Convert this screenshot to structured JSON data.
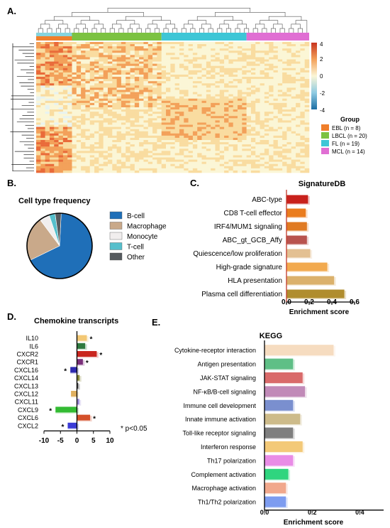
{
  "panels": {
    "a": "A.",
    "b": "B.",
    "c": "C.",
    "d": "D.",
    "e": "E."
  },
  "colors": {
    "ebl": "#f07f2b",
    "lbcl": "#7cc242",
    "fl": "#3ec6d6",
    "mcl": "#e06fd3"
  },
  "chart_data": [
    {
      "type": "heatmap",
      "panel": "A.",
      "colorbar_ticks": [
        "4",
        "2",
        "0",
        "-2",
        "-4"
      ],
      "clim": [
        -4,
        4
      ],
      "legend_title": "Group",
      "groups": [
        {
          "label": "EBL (n = 8)",
          "n": 8,
          "color": "#f07f2b"
        },
        {
          "label": "LBCL (n = 20)",
          "n": 20,
          "color": "#7cc242"
        },
        {
          "label": "FL (n = 19)",
          "n": 19,
          "color": "#3ec6d6"
        },
        {
          "label": "MCL (n = 14)",
          "n": 14,
          "color": "#e06fd3"
        }
      ]
    },
    {
      "type": "pie",
      "panel": "B.",
      "title": "Cell type frequency",
      "slices": [
        {
          "label": "B-cell",
          "value": 67,
          "color": "#1f6fb8"
        },
        {
          "label": "Macrophage",
          "value": 22,
          "color": "#c9a98a"
        },
        {
          "label": "Monocyte",
          "value": 5,
          "color": "#f1eeee"
        },
        {
          "label": "T-cell",
          "value": 3,
          "color": "#55bfcc"
        },
        {
          "label": "Other",
          "value": 3,
          "color": "#555a5e"
        }
      ]
    },
    {
      "type": "bar",
      "panel": "C.",
      "title": "SignatureDB",
      "xlabel": "Enrichment score",
      "xlim": [
        0,
        0.6
      ],
      "xticks": [
        "0.0",
        "0.2",
        "0.4",
        "0.6"
      ],
      "bars": [
        {
          "label": "ABC-type",
          "value": 0.19,
          "color": "#c8211c"
        },
        {
          "label": "CD8 T-cell effector",
          "value": 0.17,
          "color": "#ea7c1e"
        },
        {
          "label": "IRF4/MUM1 signaling",
          "value": 0.18,
          "color": "#e07a22"
        },
        {
          "label": "ABC_gt_GCB_Affy",
          "value": 0.18,
          "color": "#b8534e"
        },
        {
          "label": "Quiescence/low proliferation",
          "value": 0.21,
          "color": "#e3c092"
        },
        {
          "label": "High-grade signature",
          "value": 0.36,
          "color": "#f2aa4f"
        },
        {
          "label": "HLA presentation",
          "value": 0.42,
          "color": "#dbb16c"
        },
        {
          "label": "Plasma cell differentiation",
          "value": 0.51,
          "color": "#b08d2e"
        }
      ]
    },
    {
      "type": "bar",
      "panel": "D.",
      "title": "Chemokine transcripts",
      "xlim": [
        -10,
        10
      ],
      "xticks": [
        "-10",
        "-5",
        "0",
        "5",
        "10"
      ],
      "annotation": "* p<0.05",
      "bars": [
        {
          "label": "IL10",
          "value": 3.0,
          "sig": true,
          "color": "#f3c874"
        },
        {
          "label": "IL6",
          "value": 2.5,
          "sig": false,
          "color": "#2f7a3f"
        },
        {
          "label": "CXCR2",
          "value": 6.0,
          "sig": true,
          "color": "#c9261f"
        },
        {
          "label": "CXCR1",
          "value": 1.8,
          "sig": true,
          "color": "#7a2f7a"
        },
        {
          "label": "CXCL16",
          "value": -2.0,
          "sig": true,
          "color": "#2e2ab0"
        },
        {
          "label": "CXCL14",
          "value": 0.8,
          "sig": false,
          "color": "#8a8a3a"
        },
        {
          "label": "CXCL13",
          "value": 0.4,
          "sig": false,
          "color": "#444444"
        },
        {
          "label": "CXCL12",
          "value": -1.8,
          "sig": false,
          "color": "#e0b060"
        },
        {
          "label": "CXCL11",
          "value": 0.7,
          "sig": false,
          "color": "#9a88d8"
        },
        {
          "label": "CXCL9",
          "value": -6.5,
          "sig": true,
          "color": "#33bb33"
        },
        {
          "label": "CXCL6",
          "value": 4.0,
          "sig": true,
          "color": "#d4502a"
        },
        {
          "label": "CXCL2",
          "value": -2.8,
          "sig": true,
          "color": "#3b3bd6"
        }
      ]
    },
    {
      "type": "bar",
      "panel": "E.",
      "title": "KEGG",
      "xlabel": "Enrichment score",
      "xlim": [
        0,
        0.5
      ],
      "xticks": [
        "0.0",
        "0.2",
        "0.4"
      ],
      "bars": [
        {
          "label": "Cytokine-receptor interaction",
          "value": 0.29,
          "color": "#f6dcc0"
        },
        {
          "label": "Antigen presentation",
          "value": 0.12,
          "color": "#5fbf86"
        },
        {
          "label": "JAK-STAT signaling",
          "value": 0.16,
          "color": "#d96a6a"
        },
        {
          "label": "NF-κB/B-cell signaling",
          "value": 0.17,
          "color": "#c18ab8"
        },
        {
          "label": "Immune cell development",
          "value": 0.12,
          "color": "#7a8fcf"
        },
        {
          "label": "Innate immune activation",
          "value": 0.15,
          "color": "#cdbb8a"
        },
        {
          "label": "Toll-like receptor signaling",
          "value": 0.12,
          "color": "#7f7f7f"
        },
        {
          "label": "Interferon response",
          "value": 0.16,
          "color": "#f3c978"
        },
        {
          "label": "Th17 polarization",
          "value": 0.12,
          "color": "#e98ce6"
        },
        {
          "label": "Complement activation",
          "value": 0.1,
          "color": "#2fd57f"
        },
        {
          "label": "Macrophage activation",
          "value": 0.09,
          "color": "#f1a88c"
        },
        {
          "label": "Th1/Th2 polarization",
          "value": 0.09,
          "color": "#7d9cf0"
        }
      ]
    }
  ]
}
